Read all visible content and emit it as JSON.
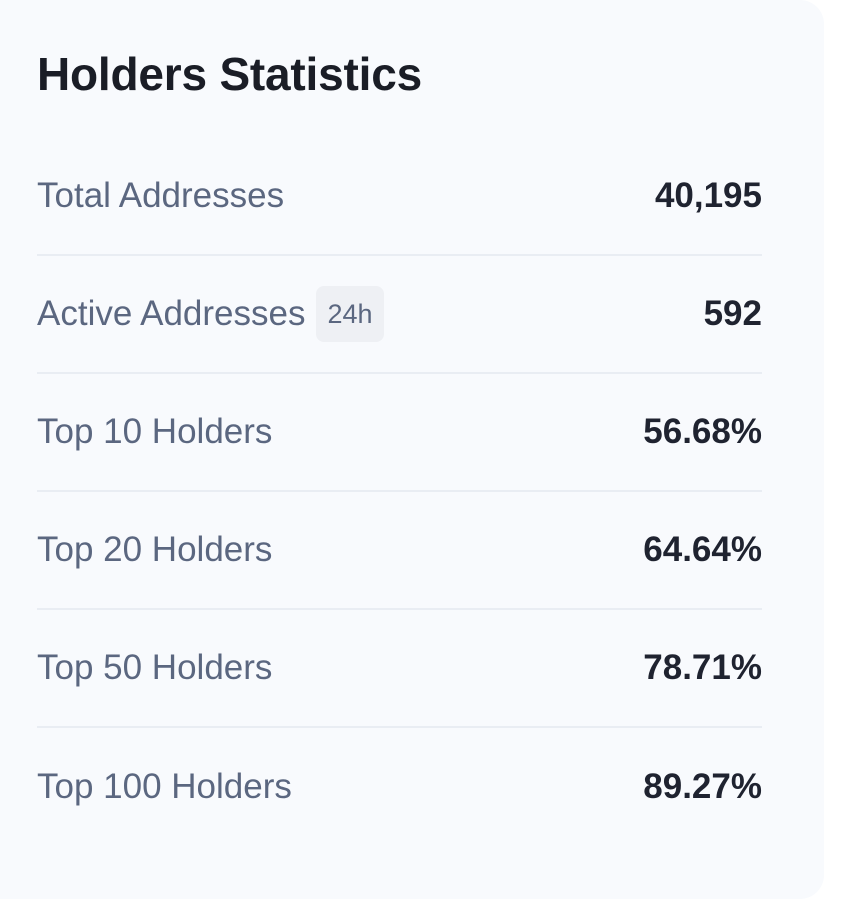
{
  "card": {
    "title": "Holders Statistics"
  },
  "stats": [
    {
      "label": "Total Addresses",
      "value": "40,195",
      "badge": ""
    },
    {
      "label": "Active Addresses",
      "value": "592",
      "badge": "24h"
    },
    {
      "label": "Top 10 Holders",
      "value": "56.68%",
      "badge": ""
    },
    {
      "label": "Top 20 Holders",
      "value": "64.64%",
      "badge": ""
    },
    {
      "label": "Top 50 Holders",
      "value": "78.71%",
      "badge": ""
    },
    {
      "label": "Top 100 Holders",
      "value": "89.27%",
      "badge": ""
    }
  ],
  "colors": {
    "card_background": "#f8fafd",
    "title": "#1a1d26",
    "label": "#5b6780",
    "value": "#1f2330",
    "divider": "#e9edf3",
    "badge_background": "#eef0f4"
  }
}
